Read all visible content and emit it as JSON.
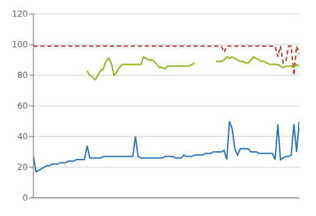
{
  "chart_data": {
    "type": "line",
    "x": [
      0,
      1,
      2,
      3,
      4,
      5,
      6,
      7,
      8,
      9,
      10,
      11,
      12,
      13,
      14,
      15,
      16,
      17,
      18,
      19,
      20,
      21,
      22,
      23,
      24,
      25,
      26,
      27,
      28,
      29,
      30,
      31,
      32,
      33,
      34,
      35,
      36,
      37,
      38,
      39,
      40,
      41,
      42,
      43,
      44,
      45,
      46,
      47,
      48,
      49,
      50,
      51,
      52,
      53,
      54,
      55,
      56,
      57,
      58,
      59,
      60,
      61,
      62,
      63,
      64,
      65,
      66,
      67,
      68,
      69,
      70,
      71,
      72,
      73,
      74,
      75,
      76,
      77,
      78,
      79,
      80,
      81,
      82,
      83,
      84,
      85,
      86,
      87,
      88,
      89,
      90,
      91,
      92,
      93,
      94,
      95,
      96,
      97,
      98,
      99
    ],
    "series": [
      {
        "color": "#c0392b",
        "line_style": "dashed",
        "values": [
          99,
          99,
          99,
          99,
          99,
          99,
          99,
          99,
          99,
          99,
          99,
          99,
          99,
          99,
          99,
          99,
          99,
          99,
          99,
          99,
          99,
          99,
          99,
          99,
          99,
          99,
          99,
          99,
          99,
          99,
          99,
          99,
          99,
          99,
          99,
          99,
          99,
          99,
          99,
          99,
          99,
          99,
          99,
          99,
          99,
          99,
          99,
          99,
          99,
          99,
          99,
          99,
          99,
          99,
          99,
          99,
          99,
          99,
          99,
          99,
          99,
          99,
          99,
          99,
          99,
          99,
          99,
          99,
          99,
          99,
          99,
          95,
          99,
          99,
          99,
          99,
          99,
          99,
          99,
          99,
          99,
          99,
          99,
          99,
          99,
          99,
          99,
          99,
          99,
          99,
          99,
          92,
          99,
          88,
          89,
          99,
          99,
          80,
          99,
          94
        ]
      },
      {
        "color": "#8db510",
        "line_style": "solid",
        "values": [
          null,
          null,
          null,
          null,
          null,
          null,
          null,
          null,
          null,
          null,
          null,
          null,
          null,
          null,
          null,
          null,
          null,
          null,
          null,
          null,
          83,
          80,
          79,
          77,
          80,
          83,
          84,
          89,
          91,
          88,
          80,
          82,
          85,
          87,
          87,
          87,
          87,
          87,
          87,
          87,
          87,
          92,
          91,
          90,
          90,
          89,
          87,
          85,
          85,
          84,
          86,
          86,
          86,
          86,
          86,
          86,
          86,
          86,
          86,
          87,
          88,
          null,
          null,
          null,
          null,
          null,
          null,
          null,
          89,
          89,
          89,
          90,
          92,
          91,
          92,
          91,
          90,
          89,
          89,
          88,
          88,
          90,
          92,
          91,
          90,
          89,
          89,
          88,
          87,
          87,
          87,
          87,
          86,
          85,
          86,
          86,
          86,
          85,
          87,
          86
        ]
      },
      {
        "color": "#2e75b6",
        "line_style": "solid",
        "values": [
          27,
          17,
          18,
          19,
          20,
          21,
          21,
          22,
          22,
          22,
          23,
          23,
          23,
          24,
          24,
          24,
          25,
          25,
          25,
          25,
          34,
          26,
          26,
          26,
          26,
          26,
          27,
          27,
          27,
          27,
          27,
          27,
          27,
          27,
          27,
          27,
          27,
          27,
          40,
          27,
          26,
          26,
          26,
          26,
          26,
          26,
          26,
          26,
          26,
          27,
          27,
          27,
          27,
          26,
          26,
          26,
          28,
          27,
          27,
          27,
          28,
          28,
          28,
          28,
          29,
          29,
          29,
          30,
          30,
          30,
          30,
          31,
          25,
          50,
          45,
          32,
          28,
          32,
          32,
          32,
          32,
          30,
          30,
          30,
          29,
          29,
          29,
          29,
          29,
          29,
          25,
          48,
          25,
          26,
          27,
          27,
          28,
          48,
          30,
          50
        ]
      }
    ],
    "xlim": [
      0,
      99
    ],
    "ylim": [
      0,
      120
    ],
    "yticks": [
      0,
      20,
      40,
      60,
      80,
      100,
      120
    ],
    "grid": "y",
    "tick_labels": "y"
  }
}
